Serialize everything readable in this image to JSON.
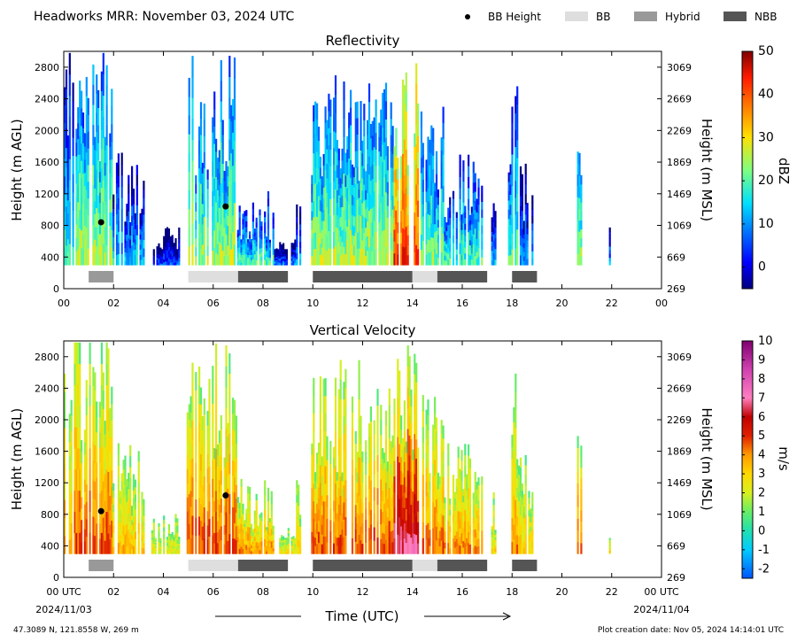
{
  "title": "Headworks MRR:  November 03, 2024 UTC",
  "legend": [
    {
      "label": "BB Height",
      "kind": "dot",
      "color": "#000000"
    },
    {
      "label": "BB",
      "kind": "box",
      "color": "#dedede"
    },
    {
      "label": "Hybrid",
      "kind": "box",
      "color": "#999999"
    },
    {
      "label": "NBB",
      "kind": "box",
      "color": "#555555"
    }
  ],
  "footer": {
    "location": "47.3089 N, 121.8558 W, 269 m",
    "created": "Plot creation date: Nov 05, 2024 14:14:01 UTC",
    "xlabel": "Time (UTC)",
    "start_date": "2024/11/03",
    "end_date": "2024/11/04"
  },
  "chart_data": [
    {
      "type": "heatmap",
      "title": "Reflectivity",
      "ylabel": "Height (m AGL)",
      "ylabel_right": "Height (m MSL)",
      "xlim": [
        0,
        24
      ],
      "ylim": [
        0,
        3000
      ],
      "xticks": [
        "00",
        "02",
        "04",
        "06",
        "08",
        "10",
        "12",
        "14",
        "16",
        "18",
        "20",
        "22",
        "00"
      ],
      "yticks": [
        0,
        400,
        800,
        1200,
        1600,
        2000,
        2400,
        2800
      ],
      "yticks_right": [
        269,
        669,
        1069,
        1469,
        1869,
        2269,
        2669,
        3069
      ],
      "colorbar": {
        "label": "dBZ",
        "min": -5,
        "max": 50,
        "ticks": [
          0,
          10,
          20,
          30,
          40,
          50
        ]
      },
      "bb_height_points": [
        {
          "x": 1.5,
          "y": 840
        },
        {
          "x": 6.5,
          "y": 1040
        }
      ],
      "bright_band_segments": [
        {
          "start": 1.0,
          "end": 2.0,
          "type": "Hybrid"
        },
        {
          "start": 5.0,
          "end": 7.0,
          "type": "BB"
        },
        {
          "start": 7.0,
          "end": 9.0,
          "type": "NBB"
        },
        {
          "start": 10.0,
          "end": 14.0,
          "type": "NBB"
        },
        {
          "start": 14.0,
          "end": 15.0,
          "type": "BB"
        },
        {
          "start": 15.0,
          "end": 17.0,
          "type": "NBB"
        },
        {
          "start": 18.0,
          "end": 19.0,
          "type": "NBB"
        }
      ]
    },
    {
      "type": "heatmap",
      "title": "Vertical Velocity",
      "ylabel": "Height (m AGL)",
      "ylabel_right": "Height (m MSL)",
      "xlim": [
        0,
        24
      ],
      "ylim": [
        0,
        3000
      ],
      "xticks": [
        "00 UTC",
        "02",
        "04",
        "06",
        "08",
        "10",
        "12",
        "14",
        "16",
        "18",
        "20",
        "22",
        "00 UTC"
      ],
      "yticks": [
        0,
        400,
        800,
        1200,
        1600,
        2000,
        2400,
        2800
      ],
      "yticks_right": [
        269,
        669,
        1069,
        1469,
        1869,
        2269,
        2669,
        3069
      ],
      "colorbar": {
        "label": "m/s",
        "min": -2.5,
        "max": 10,
        "ticks": [
          -2,
          -1,
          0,
          1,
          2,
          3,
          4,
          5,
          6,
          7,
          8,
          9,
          10
        ]
      },
      "bb_height_points": [
        {
          "x": 1.5,
          "y": 840
        },
        {
          "x": 6.5,
          "y": 1040
        }
      ],
      "bright_band_segments": [
        {
          "start": 1.0,
          "end": 2.0,
          "type": "Hybrid"
        },
        {
          "start": 5.0,
          "end": 7.0,
          "type": "BB"
        },
        {
          "start": 7.0,
          "end": 9.0,
          "type": "NBB"
        },
        {
          "start": 10.0,
          "end": 14.0,
          "type": "NBB"
        },
        {
          "start": 14.0,
          "end": 15.0,
          "type": "BB"
        },
        {
          "start": 15.0,
          "end": 17.0,
          "type": "NBB"
        },
        {
          "start": 18.0,
          "end": 19.0,
          "type": "NBB"
        }
      ]
    }
  ]
}
